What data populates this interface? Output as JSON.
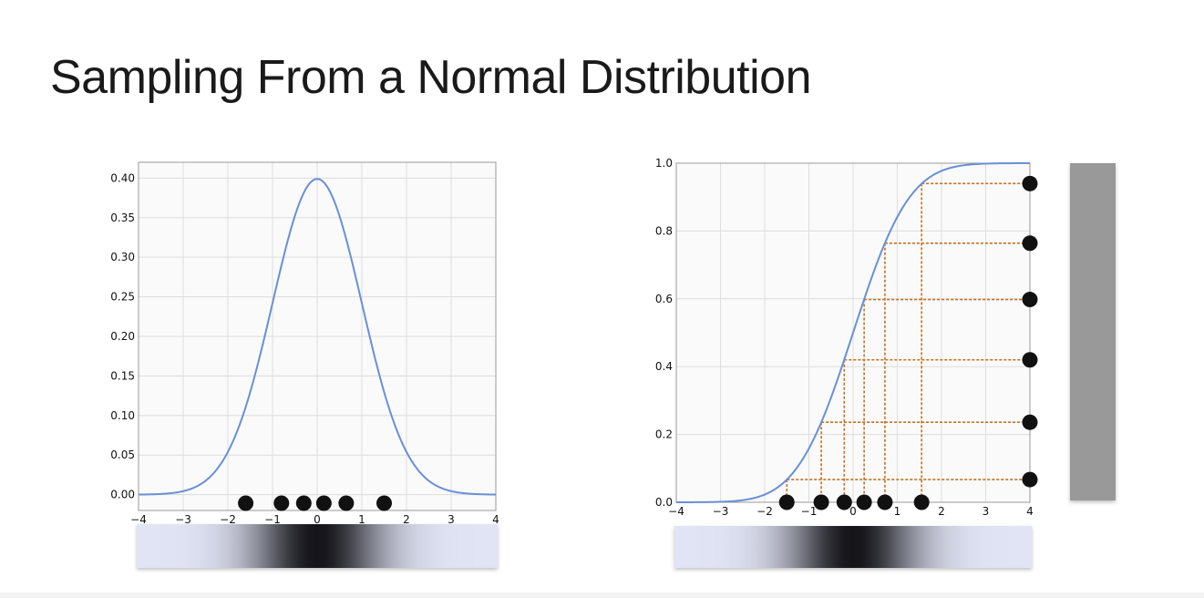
{
  "slide": {
    "title": "Sampling From a Normal Distribution"
  },
  "colors": {
    "curve": "#6a8fd6",
    "guide": "#c87020",
    "dot": "#111111",
    "grid": "#dddddd",
    "bar": "#999999"
  },
  "chart_data": [
    {
      "type": "line",
      "title": "",
      "xlabel": "",
      "ylabel": "",
      "xlim": [
        -4,
        4
      ],
      "ylim": [
        -0.02,
        0.42
      ],
      "xticks": [
        "−4",
        "−3",
        "−2",
        "−1",
        "0",
        "1",
        "2",
        "3",
        "4"
      ],
      "yticks": [
        "0.00",
        "0.05",
        "0.10",
        "0.15",
        "0.20",
        "0.25",
        "0.30",
        "0.35",
        "0.40"
      ],
      "grid": true,
      "series": [
        {
          "function": "normal_pdf",
          "mean": 0,
          "std": 1
        }
      ],
      "samples_x": [
        -1.6,
        -0.8,
        -0.3,
        0.15,
        0.65,
        1.5
      ],
      "gradient_bar": "density shading along x axis"
    },
    {
      "type": "line",
      "title": "",
      "xlabel": "",
      "ylabel": "",
      "xlim": [
        -4,
        4
      ],
      "ylim": [
        0,
        1.0
      ],
      "xticks": [
        "−4",
        "−3",
        "−2",
        "−1",
        "0",
        "1",
        "2",
        "3",
        "4"
      ],
      "yticks": [
        "0.0",
        "0.2",
        "0.4",
        "0.6",
        "0.8",
        "1.0"
      ],
      "grid": true,
      "series": [
        {
          "function": "normal_cdf",
          "mean": 0,
          "std": 1
        }
      ],
      "samples": [
        {
          "x": -1.5,
          "y": 0.067
        },
        {
          "x": -0.72,
          "y": 0.236
        },
        {
          "x": -0.2,
          "y": 0.42
        },
        {
          "x": 0.25,
          "y": 0.598
        },
        {
          "x": 0.72,
          "y": 0.764
        },
        {
          "x": 1.55,
          "y": 0.94
        }
      ],
      "uniform_bar": "uniform distribution on [0, 1]"
    }
  ]
}
